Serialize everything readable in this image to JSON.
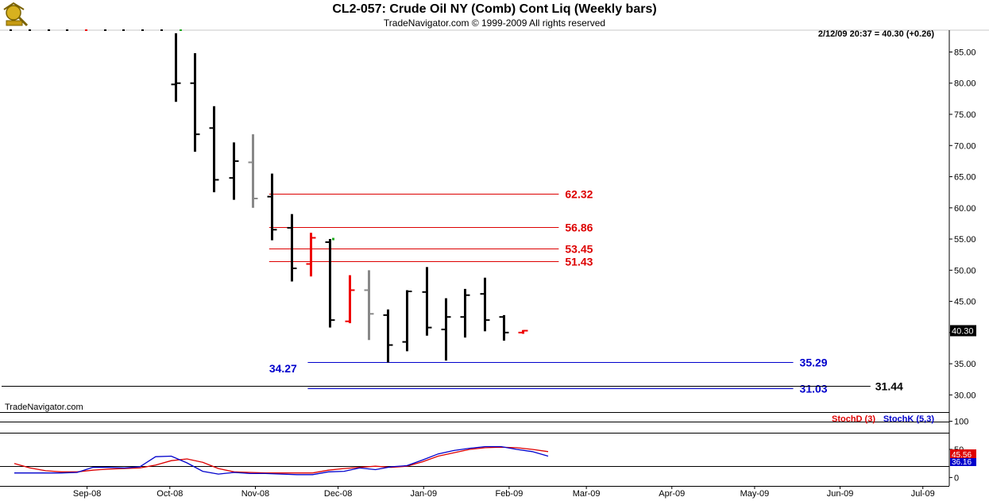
{
  "header": {
    "title": "CL2-057:  Crude Oil NY (Comb) Cont Liq  (Weekly bars)",
    "subtitle": "TradeNavigator.com © 1999-2009 All rights reserved"
  },
  "chart_data": [
    {
      "type": "ohlc",
      "name": "price",
      "quote": "2/12/09 20:37 = 40.30 (+0.26)",
      "watermark": "TradeNavigator.com",
      "ylim": [
        27.5,
        88.5
      ],
      "yticks": [
        "85.00",
        "80.00",
        "75.00",
        "70.00",
        "65.00",
        "60.00",
        "55.00",
        "50.00",
        "45.00",
        "40.00",
        "35.00",
        "30.00"
      ],
      "last_price": "40.30",
      "grid": false,
      "bars": [
        {
          "date": "2008-10-03",
          "o": 79.8,
          "h": 88.0,
          "l": 77.0,
          "c": 80.0,
          "color": "#000000"
        },
        {
          "date": "2008-10-10",
          "o": 80.0,
          "h": 84.8,
          "l": 69.0,
          "c": 71.8,
          "color": "#000000"
        },
        {
          "date": "2008-10-17",
          "o": 72.8,
          "h": 76.3,
          "l": 62.5,
          "c": 64.5,
          "color": "#000000"
        },
        {
          "date": "2008-10-24",
          "o": 64.8,
          "h": 70.5,
          "l": 61.3,
          "c": 67.5,
          "color": "#000000"
        },
        {
          "date": "2008-10-31",
          "o": 67.3,
          "h": 71.8,
          "l": 60.0,
          "c": 61.5,
          "color": "#888888"
        },
        {
          "date": "2008-11-07",
          "o": 61.8,
          "h": 65.5,
          "l": 54.8,
          "c": 56.5,
          "color": "#000000"
        },
        {
          "date": "2008-11-14",
          "o": 56.8,
          "h": 59.0,
          "l": 48.2,
          "c": 50.3,
          "color": "#000000"
        },
        {
          "date": "2008-11-21",
          "o": 51.0,
          "h": 56.0,
          "l": 49.0,
          "c": 55.2,
          "color": "#ee0000"
        },
        {
          "date": "2008-11-28",
          "o": 54.5,
          "h": 55.0,
          "l": 40.8,
          "c": 42.0,
          "color": "#000000"
        },
        {
          "date": "2008-12-05",
          "o": 41.8,
          "h": 49.2,
          "l": 41.5,
          "c": 46.8,
          "color": "#ee0000"
        },
        {
          "date": "2008-12-12",
          "o": 46.8,
          "h": 50.0,
          "l": 38.8,
          "c": 43.0,
          "color": "#888888"
        },
        {
          "date": "2008-12-19",
          "o": 42.8,
          "h": 43.7,
          "l": 35.2,
          "c": 38.0,
          "color": "#000000"
        },
        {
          "date": "2008-12-26",
          "o": 38.5,
          "h": 46.8,
          "l": 37.0,
          "c": 46.6,
          "color": "#000000"
        },
        {
          "date": "2009-01-02",
          "o": 46.5,
          "h": 50.5,
          "l": 39.5,
          "c": 40.8,
          "color": "#000000"
        },
        {
          "date": "2009-01-09",
          "o": 40.5,
          "h": 45.5,
          "l": 35.5,
          "c": 42.5,
          "color": "#000000"
        },
        {
          "date": "2009-01-16",
          "o": 42.5,
          "h": 47.0,
          "l": 39.2,
          "c": 46.0,
          "color": "#000000"
        },
        {
          "date": "2009-01-23",
          "o": 46.2,
          "h": 48.8,
          "l": 40.2,
          "c": 42.0,
          "color": "#000000"
        },
        {
          "date": "2009-01-30",
          "o": 42.5,
          "h": 42.8,
          "l": 38.7,
          "c": 40.0,
          "color": "#000000"
        },
        {
          "date": "2009-02-06",
          "o": 40.0,
          "h": 40.4,
          "l": 39.8,
          "c": 40.3,
          "color": "#ee0000"
        }
      ],
      "levels": [
        {
          "value": 62.32,
          "label": "62.32",
          "color": "#dd0000",
          "start": "2008-11-06",
          "end": "2009-02-19"
        },
        {
          "value": 56.86,
          "label": "56.86",
          "color": "#dd0000",
          "start": "2008-11-06",
          "end": "2009-02-19"
        },
        {
          "value": 53.45,
          "label": "53.45",
          "color": "#dd0000",
          "start": "2008-11-06",
          "end": "2009-02-19"
        },
        {
          "value": 51.43,
          "label": "51.43",
          "color": "#dd0000",
          "start": "2008-11-06",
          "end": "2009-02-19"
        },
        {
          "value": 35.29,
          "label": "35.29",
          "color": "#0000cc",
          "start": "2008-11-20",
          "end": "2009-05-15"
        },
        {
          "value": 31.03,
          "label": "31.03",
          "color": "#0000cc",
          "start": "2008-11-20",
          "end": "2009-05-15",
          "double": true
        },
        {
          "value": 31.44,
          "label": "31.44",
          "color": "#000000",
          "start": "2008-08-01",
          "end": "2009-06-12"
        }
      ],
      "annotations": [
        {
          "text": "34.27",
          "color": "#0000cc",
          "date": "2008-11-06",
          "value": 34.27
        }
      ]
    },
    {
      "type": "line",
      "name": "stochastics",
      "ylim": [
        -15,
        115
      ],
      "yticks": [
        "100",
        "50",
        "0"
      ],
      "ref_lines": [
        100,
        80,
        20
      ],
      "series": [
        {
          "name": "StochD (3)",
          "color": "#dd0000",
          "values": [
            25,
            17,
            12,
            10,
            10,
            13,
            15,
            16,
            17,
            22,
            30,
            33,
            27,
            16,
            10,
            9,
            8,
            8,
            8,
            8,
            13,
            16,
            18,
            20,
            18,
            20,
            28,
            38,
            44,
            50,
            53,
            54,
            53,
            50,
            46
          ],
          "last": "45.56"
        },
        {
          "name": "StochK (5,3)",
          "color": "#0000cc",
          "values": [
            8,
            8,
            8,
            8,
            9,
            18,
            18,
            17,
            19,
            37,
            38,
            26,
            11,
            6,
            9,
            7,
            7,
            6,
            5,
            5,
            10,
            11,
            17,
            14,
            19,
            21,
            31,
            42,
            48,
            52,
            55,
            55,
            50,
            46,
            38
          ],
          "last": "36.16"
        }
      ]
    }
  ],
  "xaxis": {
    "labels": [
      "Sep-08",
      "Oct-08",
      "Nov-08",
      "Dec-08",
      "Jan-09",
      "Feb-09",
      "Mar-09",
      "Apr-09",
      "May-09",
      "Jun-09",
      "Jul-09"
    ]
  },
  "colors": {
    "bull": "#000000",
    "bear": "#ee0000",
    "neutral": "#888888"
  }
}
